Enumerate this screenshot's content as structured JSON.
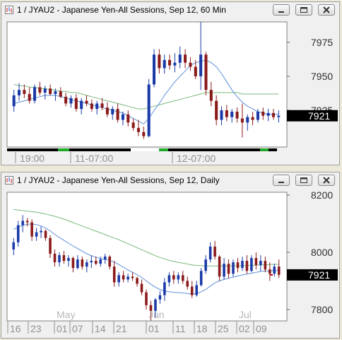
{
  "windows": [
    {
      "title": "1 / JYAU2 - Japanese Yen-All Sessions, Sep 12, 60 Min",
      "price_badge": "7921",
      "y_ticks": [
        "7975",
        "7950",
        "7925"
      ],
      "x_labels": [
        "19:00",
        "11-07:00",
        "12-07:00"
      ]
    },
    {
      "title": "1 / JYAU2 - Japanese Yen-All Sessions, Sep 12, Daily",
      "price_badge": "7921",
      "y_ticks": [
        "8200",
        "8000",
        "7800"
      ],
      "month_labels": [
        "May",
        "Jun",
        "Jul"
      ],
      "day_labels": [
        "16",
        "23",
        "01",
        "07",
        "14",
        "21",
        "01",
        "11",
        "18",
        "25",
        "02",
        "09"
      ]
    }
  ],
  "colors": {
    "up_candle": "#1a3aa8",
    "down_candle": "#8b1a1a",
    "ma_fast": "#5b8fd8",
    "ma_slow": "#7cb87c",
    "badge_bg": "#000000",
    "badge_fg": "#ffffff"
  },
  "icons": {
    "window_icon": "chart-window-icon",
    "minimize": "minimize-icon",
    "maximize": "maximize-icon",
    "close": "close-icon"
  },
  "chart_data": [
    {
      "type": "candlestick",
      "title": "1 / JYAU2 - Japanese Yen-All Sessions, Sep 12, 60 Min",
      "ylim": [
        7898,
        7990
      ],
      "yticks": [
        7975,
        7950,
        7925
      ],
      "last_price": 7921,
      "ohlc": [
        [
          7928,
          7940,
          7924,
          7936
        ],
        [
          7936,
          7945,
          7932,
          7940
        ],
        [
          7940,
          7944,
          7934,
          7937
        ],
        [
          7937,
          7942,
          7930,
          7932
        ],
        [
          7932,
          7944,
          7930,
          7942
        ],
        [
          7942,
          7946,
          7936,
          7938
        ],
        [
          7938,
          7943,
          7933,
          7941
        ],
        [
          7941,
          7944,
          7936,
          7937
        ],
        [
          7937,
          7941,
          7932,
          7939
        ],
        [
          7939,
          7942,
          7934,
          7935
        ],
        [
          7935,
          7938,
          7928,
          7930
        ],
        [
          7930,
          7936,
          7927,
          7934
        ],
        [
          7934,
          7937,
          7924,
          7926
        ],
        [
          7926,
          7934,
          7922,
          7932
        ],
        [
          7932,
          7936,
          7928,
          7930
        ],
        [
          7930,
          7933,
          7924,
          7926
        ],
        [
          7926,
          7932,
          7922,
          7930
        ],
        [
          7930,
          7934,
          7925,
          7927
        ],
        [
          7927,
          7931,
          7920,
          7922
        ],
        [
          7922,
          7928,
          7918,
          7926
        ],
        [
          7926,
          7930,
          7916,
          7918
        ],
        [
          7918,
          7924,
          7914,
          7922
        ],
        [
          7922,
          7925,
          7913,
          7916
        ],
        [
          7916,
          7919,
          7910,
          7912
        ],
        [
          7912,
          7918,
          7906,
          7909
        ],
        [
          7909,
          7913,
          7904,
          7906
        ],
        [
          7906,
          7948,
          7905,
          7944
        ],
        [
          7944,
          7970,
          7942,
          7966
        ],
        [
          7966,
          7970,
          7952,
          7956
        ],
        [
          7956,
          7966,
          7952,
          7962
        ],
        [
          7962,
          7966,
          7955,
          7958
        ],
        [
          7958,
          7967,
          7953,
          7960
        ],
        [
          7960,
          7972,
          7956,
          7966
        ],
        [
          7966,
          7970,
          7956,
          7960
        ],
        [
          7960,
          7964,
          7954,
          7957
        ],
        [
          7957,
          7962,
          7948,
          7950
        ],
        [
          7950,
          7990,
          7940,
          7966
        ],
        [
          7966,
          7968,
          7936,
          7940
        ],
        [
          7940,
          7946,
          7928,
          7932
        ],
        [
          7932,
          7936,
          7914,
          7918
        ],
        [
          7918,
          7928,
          7914,
          7925
        ],
        [
          7925,
          7929,
          7917,
          7920
        ],
        [
          7920,
          7926,
          7916,
          7924
        ],
        [
          7924,
          7927,
          7916,
          7919
        ],
        [
          7919,
          7930,
          7905,
          7916
        ],
        [
          7916,
          7922,
          7910,
          7920
        ],
        [
          7920,
          7924,
          7914,
          7918
        ],
        [
          7918,
          7926,
          7916,
          7924
        ],
        [
          7924,
          7927,
          7918,
          7921
        ],
        [
          7921,
          7926,
          7917,
          7923
        ],
        [
          7923,
          7926,
          7918,
          7920
        ],
        [
          7920,
          7925,
          7916,
          7921
        ]
      ],
      "ma_fast": [
        7930,
        7931,
        7932,
        7933,
        7934,
        7935,
        7936,
        7936,
        7936,
        7935,
        7934,
        7933,
        7932,
        7931,
        7930,
        7929,
        7928,
        7927,
        7926,
        7925,
        7924,
        7923,
        7921,
        7919,
        7917,
        7915,
        7919,
        7925,
        7930,
        7936,
        7941,
        7946,
        7950,
        7954,
        7958,
        7960,
        7961,
        7962,
        7960,
        7957,
        7952,
        7946,
        7940,
        7935,
        7931,
        7928,
        7926,
        7924,
        7923,
        7922,
        7922,
        7922
      ],
      "ma_slow": [
        7944,
        7943,
        7943,
        7942,
        7942,
        7941,
        7941,
        7940,
        7940,
        7939,
        7939,
        7938,
        7938,
        7937,
        7936,
        7935,
        7934,
        7933,
        7932,
        7931,
        7930,
        7929,
        7928,
        7927,
        7926,
        7926,
        7927,
        7928,
        7929,
        7930,
        7931,
        7932,
        7933,
        7934,
        7935,
        7936,
        7937,
        7938,
        7938,
        7938,
        7938,
        7938,
        7938,
        7938,
        7937,
        7937,
        7937,
        7937,
        7937,
        7937,
        7937,
        7937
      ]
    },
    {
      "type": "candlestick",
      "title": "1 / JYAU2 - Japanese Yen-All Sessions, Sep 12, Daily",
      "ylim": [
        7760,
        8210
      ],
      "yticks": [
        8200,
        8000,
        7800
      ],
      "last_price": 7921,
      "ohlc": [
        [
          8010,
          8050,
          7990,
          8035
        ],
        [
          8035,
          8110,
          8020,
          8095
        ],
        [
          8095,
          8130,
          8070,
          8110
        ],
        [
          8110,
          8120,
          8090,
          8105
        ],
        [
          8105,
          8115,
          8040,
          8055
        ],
        [
          8055,
          8085,
          8040,
          8070
        ],
        [
          8070,
          8090,
          8050,
          8075
        ],
        [
          8075,
          8080,
          8040,
          8050
        ],
        [
          8050,
          8060,
          7980,
          7995
        ],
        [
          7995,
          8010,
          7950,
          7965
        ],
        [
          7965,
          8000,
          7950,
          7990
        ],
        [
          7990,
          8005,
          7960,
          7970
        ],
        [
          7970,
          7990,
          7950,
          7980
        ],
        [
          7980,
          7985,
          7930,
          7945
        ],
        [
          7945,
          7990,
          7940,
          7975
        ],
        [
          7975,
          7985,
          7940,
          7950
        ],
        [
          7950,
          7975,
          7930,
          7965
        ],
        [
          7965,
          7990,
          7945,
          7970
        ],
        [
          7970,
          7985,
          7955,
          7960
        ],
        [
          7960,
          7985,
          7950,
          7975
        ],
        [
          7975,
          7995,
          7960,
          7985
        ],
        [
          7985,
          7990,
          7940,
          7950
        ],
        [
          7950,
          7970,
          7880,
          7895
        ],
        [
          7895,
          7930,
          7880,
          7920
        ],
        [
          7920,
          7935,
          7895,
          7905
        ],
        [
          7905,
          7925,
          7895,
          7915
        ],
        [
          7915,
          7930,
          7900,
          7910
        ],
        [
          7910,
          7915,
          7880,
          7890
        ],
        [
          7890,
          7905,
          7850,
          7860
        ],
        [
          7860,
          7870,
          7800,
          7815
        ],
        [
          7815,
          7830,
          7760,
          7795
        ],
        [
          7795,
          7840,
          7770,
          7835
        ],
        [
          7835,
          7865,
          7820,
          7850
        ],
        [
          7850,
          7910,
          7830,
          7895
        ],
        [
          7895,
          7930,
          7880,
          7920
        ],
        [
          7920,
          7935,
          7890,
          7905
        ],
        [
          7905,
          7930,
          7890,
          7920
        ],
        [
          7920,
          7935,
          7890,
          7900
        ],
        [
          7900,
          7915,
          7870,
          7880
        ],
        [
          7880,
          7900,
          7840,
          7850
        ],
        [
          7850,
          7900,
          7845,
          7885
        ],
        [
          7885,
          7945,
          7880,
          7935
        ],
        [
          7935,
          7990,
          7925,
          7975
        ],
        [
          7975,
          8035,
          7965,
          8020
        ],
        [
          8020,
          8040,
          7975,
          7985
        ],
        [
          7985,
          7990,
          7900,
          7915
        ],
        [
          7915,
          7980,
          7905,
          7960
        ],
        [
          7960,
          7975,
          7910,
          7925
        ],
        [
          7925,
          7975,
          7915,
          7965
        ],
        [
          7965,
          7980,
          7930,
          7945
        ],
        [
          7945,
          7985,
          7935,
          7970
        ],
        [
          7970,
          7990,
          7925,
          7935
        ],
        [
          7935,
          7990,
          7930,
          7980
        ],
        [
          7980,
          8000,
          7940,
          7955
        ],
        [
          7955,
          7990,
          7935,
          7970
        ],
        [
          7970,
          7985,
          7930,
          7940
        ],
        [
          7940,
          7965,
          7900,
          7925
        ],
        [
          7925,
          7960,
          7915,
          7950
        ],
        [
          7950,
          7975,
          7910,
          7921
        ]
      ],
      "ma_fast": [
        8080,
        8088,
        8094,
        8098,
        8099,
        8097,
        8092,
        8085,
        8075,
        8063,
        8052,
        8042,
        8032,
        8022,
        8013,
        8004,
        7995,
        7988,
        7983,
        7978,
        7975,
        7972,
        7966,
        7957,
        7948,
        7938,
        7930,
        7922,
        7912,
        7900,
        7888,
        7878,
        7870,
        7864,
        7862,
        7860,
        7859,
        7858,
        7856,
        7854,
        7856,
        7862,
        7870,
        7882,
        7893,
        7900,
        7905,
        7909,
        7913,
        7917,
        7921,
        7924,
        7927,
        7930,
        7933,
        7935,
        7935,
        7936,
        7936
      ],
      "ma_slow": [
        8150,
        8148,
        8146,
        8144,
        8142,
        8140,
        8137,
        8134,
        8130,
        8126,
        8121,
        8116,
        8110,
        8104,
        8098,
        8092,
        8086,
        8080,
        8074,
        8068,
        8062,
        8056,
        8050,
        8044,
        8037,
        8030,
        8023,
        8016,
        8009,
        8002,
        7995,
        7988,
        7982,
        7977,
        7972,
        7968,
        7965,
        7962,
        7959,
        7956,
        7954,
        7953,
        7952,
        7952,
        7952,
        7952,
        7952,
        7952,
        7952,
        7953,
        7953,
        7954,
        7954,
        7955,
        7956,
        7956,
        7957,
        7958,
        7958
      ]
    }
  ]
}
